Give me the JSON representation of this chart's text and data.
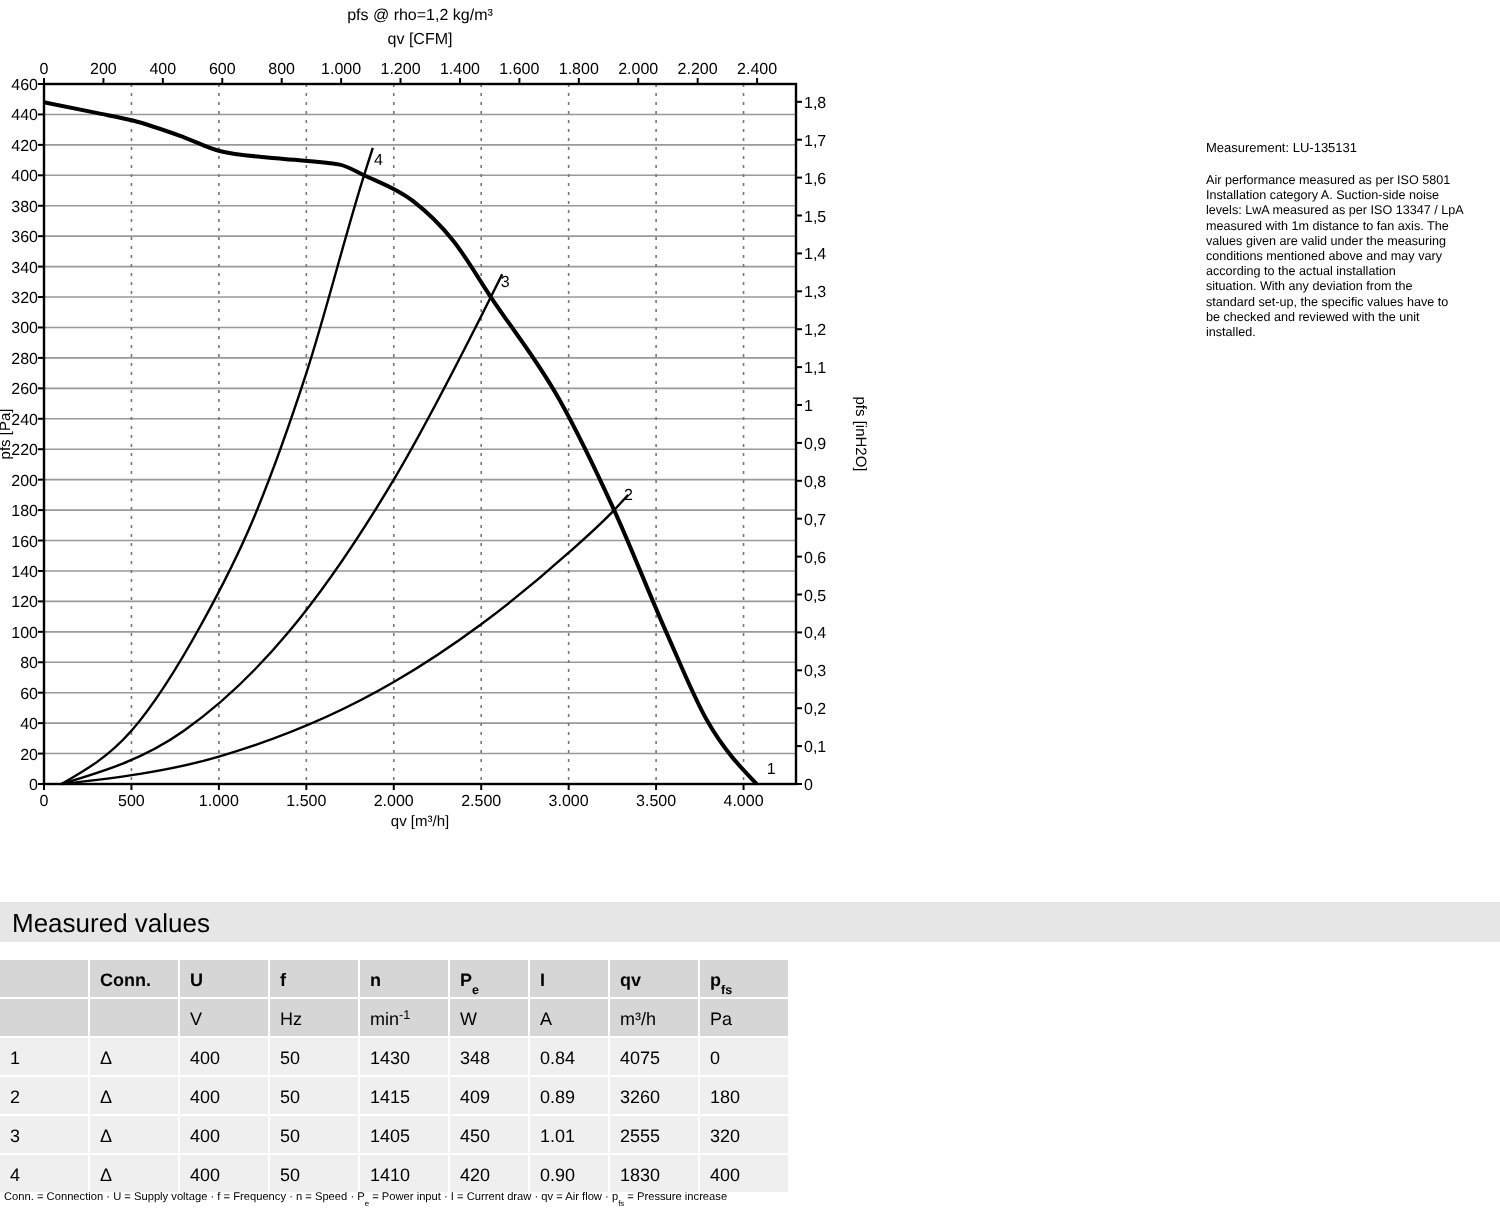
{
  "chart_data": {
    "type": "line",
    "title": "pfs @ rho=1,2 kg/m³",
    "xlabel": "qv [m³/h]",
    "x2label": "qv [CFM]",
    "ylabel": "pfs [Pa]",
    "y2label": "pfs [inH2O]",
    "xlim": [
      0,
      4300
    ],
    "xticks": [
      0,
      500,
      {
        "value": 1000,
        "label": "1.000"
      },
      {
        "value": 1500,
        "label": "1.500"
      },
      {
        "value": 2000,
        "label": "2.000"
      },
      {
        "value": 2500,
        "label": "2.500"
      },
      {
        "value": 3000,
        "label": "3.000"
      },
      {
        "value": 3500,
        "label": "3.500"
      },
      {
        "value": 4000,
        "label": "4.000"
      }
    ],
    "x2lim": [
      0,
      2531
    ],
    "x2ticks": [
      0,
      200,
      400,
      600,
      800,
      {
        "value": 1000,
        "label": "1.000"
      },
      {
        "value": 1200,
        "label": "1.200"
      },
      {
        "value": 1400,
        "label": "1.400"
      },
      {
        "value": 1600,
        "label": "1.600"
      },
      {
        "value": 1800,
        "label": "1.800"
      },
      {
        "value": 2000,
        "label": "2.000"
      },
      {
        "value": 2200,
        "label": "2.200"
      },
      {
        "value": 2400,
        "label": "2.400"
      }
    ],
    "ylim": [
      0,
      460
    ],
    "yticks": [
      0,
      20,
      40,
      60,
      80,
      100,
      120,
      140,
      160,
      180,
      200,
      220,
      240,
      260,
      280,
      300,
      320,
      340,
      360,
      380,
      400,
      420,
      440,
      460
    ],
    "y2lim": [
      0,
      1.847
    ],
    "y2ticks": [
      0,
      {
        "value": 0.1,
        "label": "0,1"
      },
      {
        "value": 0.2,
        "label": "0,2"
      },
      {
        "value": 0.3,
        "label": "0,3"
      },
      {
        "value": 0.4,
        "label": "0,4"
      },
      {
        "value": 0.5,
        "label": "0,5"
      },
      {
        "value": 0.6,
        "label": "0,6"
      },
      {
        "value": 0.7,
        "label": "0,7"
      },
      {
        "value": 0.8,
        "label": "0,8"
      },
      {
        "value": 0.9,
        "label": "0,9"
      },
      1,
      {
        "value": 1.1,
        "label": "1,1"
      },
      {
        "value": 1.2,
        "label": "1,2"
      },
      {
        "value": 1.3,
        "label": "1,3"
      },
      {
        "value": 1.4,
        "label": "1,4"
      },
      {
        "value": 1.5,
        "label": "1,5"
      },
      {
        "value": 1.6,
        "label": "1,6"
      },
      {
        "value": 1.7,
        "label": "1,7"
      },
      {
        "value": 1.8,
        "label": "1,8"
      }
    ],
    "grid": true,
    "marker": "none",
    "line_style": "solid",
    "series": [
      {
        "color": "#000000",
        "x": [
          0,
          300,
          508,
          800,
          1004,
          1347,
          1691,
          1830,
          2111,
          2340,
          2555,
          2950,
          3260,
          3561,
          3790,
          4075
        ],
        "values": [
          448,
          441,
          436,
          425,
          416,
          411,
          407,
          400,
          383,
          357,
          320,
          252,
          180,
          99,
          42,
          0
        ]
      },
      {
        "color": "#000000",
        "x": [
          100,
          500,
          900,
          1200,
          1500,
          1830,
          1880
        ],
        "values": [
          0,
          35,
          105,
          175,
          270,
          400,
          418
        ]
      },
      {
        "color": "#000000",
        "x": [
          100,
          800,
          1400,
          2000,
          2555,
          2620
        ],
        "values": [
          0,
          35,
          100,
          200,
          320,
          335
        ]
      },
      {
        "color": "#000000",
        "x": [
          100,
          1000,
          2000,
          2500,
          3000,
          3260,
          3340
        ],
        "values": [
          0,
          18,
          67,
          105,
          152,
          180,
          190
        ]
      }
    ],
    "annotations": [
      {
        "text": "1",
        "x": 4075,
        "y": 0
      },
      {
        "text": "2",
        "x": 3260,
        "y": 180
      },
      {
        "text": "3",
        "x": 2555,
        "y": 320
      },
      {
        "text": "4",
        "x": 1830,
        "y": 400
      },
      "Measurement: LU-135131",
      "Air performance measured as per ISO 5801 Installation category A. Suction-side noise levels: LwA measured as per ISO 13347 / LpA measured with 1m distance to fan axis. The values given are valid under the measuring conditions mentioned above and may vary according to the actual installation situation. With any deviation from the standard set-up, the specific values have to be checked and reviewed with the unit installed.",
      "Measured values",
      null,
      "Conn.",
      "U",
      "f",
      "n",
      "P$_{e}$",
      "I",
      "qv",
      "p$_{fs}$",
      null,
      null,
      "V",
      "Hz",
      "min$^{-1}$",
      "W",
      "A",
      "m³/h",
      "Pa",
      "1",
      "Δ",
      "400",
      "50",
      "1430",
      "348",
      "0.84",
      "4075",
      "0",
      "2",
      "Δ",
      "400",
      "50",
      "1415",
      "409",
      "0.89",
      "3260",
      "180",
      "3",
      "Δ",
      "400",
      "50",
      "1405",
      "450",
      "1.01",
      "2555",
      "320",
      "4",
      "Δ",
      "400",
      "50",
      "1410",
      "420",
      "0.90",
      "1830",
      "400",
      "Conn. = Connection · U = Supply voltage · f = Frequency · n = Speed · P$_{e}$ = Power input · I = Current draw · qv = Air flow · p$_{fs}$ = Pressure increase"
    ]
  }
}
